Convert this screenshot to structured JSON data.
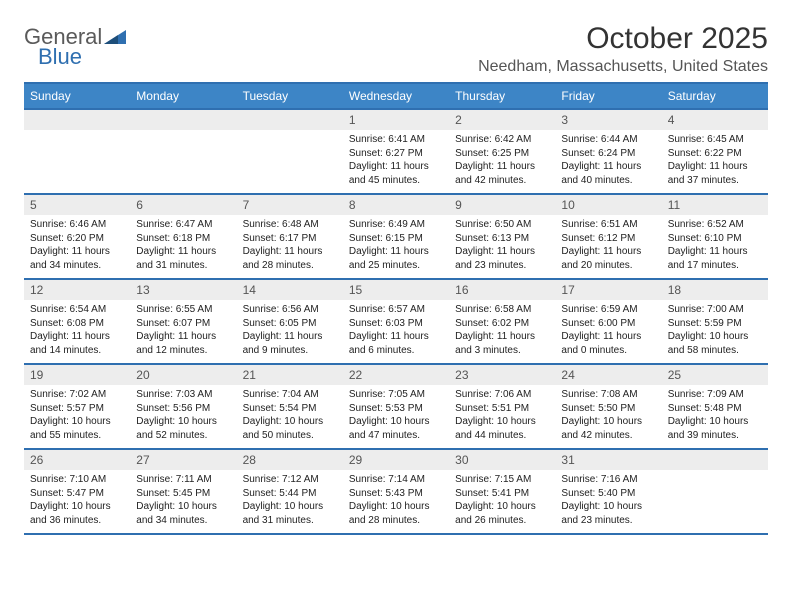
{
  "brand": {
    "text1": "General",
    "text2": "Blue",
    "accent_color": "#2f6fb0"
  },
  "title": "October 2025",
  "location": "Needham, Massachusetts, United States",
  "colors": {
    "header_bg": "#3d85c6",
    "rule": "#2f6fb0",
    "daynum_bg": "#ededed",
    "text": "#222222",
    "muted": "#555555"
  },
  "day_names": [
    "Sunday",
    "Monday",
    "Tuesday",
    "Wednesday",
    "Thursday",
    "Friday",
    "Saturday"
  ],
  "weeks": [
    [
      null,
      null,
      null,
      {
        "n": "1",
        "sunrise": "6:41 AM",
        "sunset": "6:27 PM",
        "dl": "11 hours and 45 minutes."
      },
      {
        "n": "2",
        "sunrise": "6:42 AM",
        "sunset": "6:25 PM",
        "dl": "11 hours and 42 minutes."
      },
      {
        "n": "3",
        "sunrise": "6:44 AM",
        "sunset": "6:24 PM",
        "dl": "11 hours and 40 minutes."
      },
      {
        "n": "4",
        "sunrise": "6:45 AM",
        "sunset": "6:22 PM",
        "dl": "11 hours and 37 minutes."
      }
    ],
    [
      {
        "n": "5",
        "sunrise": "6:46 AM",
        "sunset": "6:20 PM",
        "dl": "11 hours and 34 minutes."
      },
      {
        "n": "6",
        "sunrise": "6:47 AM",
        "sunset": "6:18 PM",
        "dl": "11 hours and 31 minutes."
      },
      {
        "n": "7",
        "sunrise": "6:48 AM",
        "sunset": "6:17 PM",
        "dl": "11 hours and 28 minutes."
      },
      {
        "n": "8",
        "sunrise": "6:49 AM",
        "sunset": "6:15 PM",
        "dl": "11 hours and 25 minutes."
      },
      {
        "n": "9",
        "sunrise": "6:50 AM",
        "sunset": "6:13 PM",
        "dl": "11 hours and 23 minutes."
      },
      {
        "n": "10",
        "sunrise": "6:51 AM",
        "sunset": "6:12 PM",
        "dl": "11 hours and 20 minutes."
      },
      {
        "n": "11",
        "sunrise": "6:52 AM",
        "sunset": "6:10 PM",
        "dl": "11 hours and 17 minutes."
      }
    ],
    [
      {
        "n": "12",
        "sunrise": "6:54 AM",
        "sunset": "6:08 PM",
        "dl": "11 hours and 14 minutes."
      },
      {
        "n": "13",
        "sunrise": "6:55 AM",
        "sunset": "6:07 PM",
        "dl": "11 hours and 12 minutes."
      },
      {
        "n": "14",
        "sunrise": "6:56 AM",
        "sunset": "6:05 PM",
        "dl": "11 hours and 9 minutes."
      },
      {
        "n": "15",
        "sunrise": "6:57 AM",
        "sunset": "6:03 PM",
        "dl": "11 hours and 6 minutes."
      },
      {
        "n": "16",
        "sunrise": "6:58 AM",
        "sunset": "6:02 PM",
        "dl": "11 hours and 3 minutes."
      },
      {
        "n": "17",
        "sunrise": "6:59 AM",
        "sunset": "6:00 PM",
        "dl": "11 hours and 0 minutes."
      },
      {
        "n": "18",
        "sunrise": "7:00 AM",
        "sunset": "5:59 PM",
        "dl": "10 hours and 58 minutes."
      }
    ],
    [
      {
        "n": "19",
        "sunrise": "7:02 AM",
        "sunset": "5:57 PM",
        "dl": "10 hours and 55 minutes."
      },
      {
        "n": "20",
        "sunrise": "7:03 AM",
        "sunset": "5:56 PM",
        "dl": "10 hours and 52 minutes."
      },
      {
        "n": "21",
        "sunrise": "7:04 AM",
        "sunset": "5:54 PM",
        "dl": "10 hours and 50 minutes."
      },
      {
        "n": "22",
        "sunrise": "7:05 AM",
        "sunset": "5:53 PM",
        "dl": "10 hours and 47 minutes."
      },
      {
        "n": "23",
        "sunrise": "7:06 AM",
        "sunset": "5:51 PM",
        "dl": "10 hours and 44 minutes."
      },
      {
        "n": "24",
        "sunrise": "7:08 AM",
        "sunset": "5:50 PM",
        "dl": "10 hours and 42 minutes."
      },
      {
        "n": "25",
        "sunrise": "7:09 AM",
        "sunset": "5:48 PM",
        "dl": "10 hours and 39 minutes."
      }
    ],
    [
      {
        "n": "26",
        "sunrise": "7:10 AM",
        "sunset": "5:47 PM",
        "dl": "10 hours and 36 minutes."
      },
      {
        "n": "27",
        "sunrise": "7:11 AM",
        "sunset": "5:45 PM",
        "dl": "10 hours and 34 minutes."
      },
      {
        "n": "28",
        "sunrise": "7:12 AM",
        "sunset": "5:44 PM",
        "dl": "10 hours and 31 minutes."
      },
      {
        "n": "29",
        "sunrise": "7:14 AM",
        "sunset": "5:43 PM",
        "dl": "10 hours and 28 minutes."
      },
      {
        "n": "30",
        "sunrise": "7:15 AM",
        "sunset": "5:41 PM",
        "dl": "10 hours and 26 minutes."
      },
      {
        "n": "31",
        "sunrise": "7:16 AM",
        "sunset": "5:40 PM",
        "dl": "10 hours and 23 minutes."
      },
      null
    ]
  ],
  "labels": {
    "sunrise": "Sunrise: ",
    "sunset": "Sunset: ",
    "daylight": "Daylight: "
  }
}
